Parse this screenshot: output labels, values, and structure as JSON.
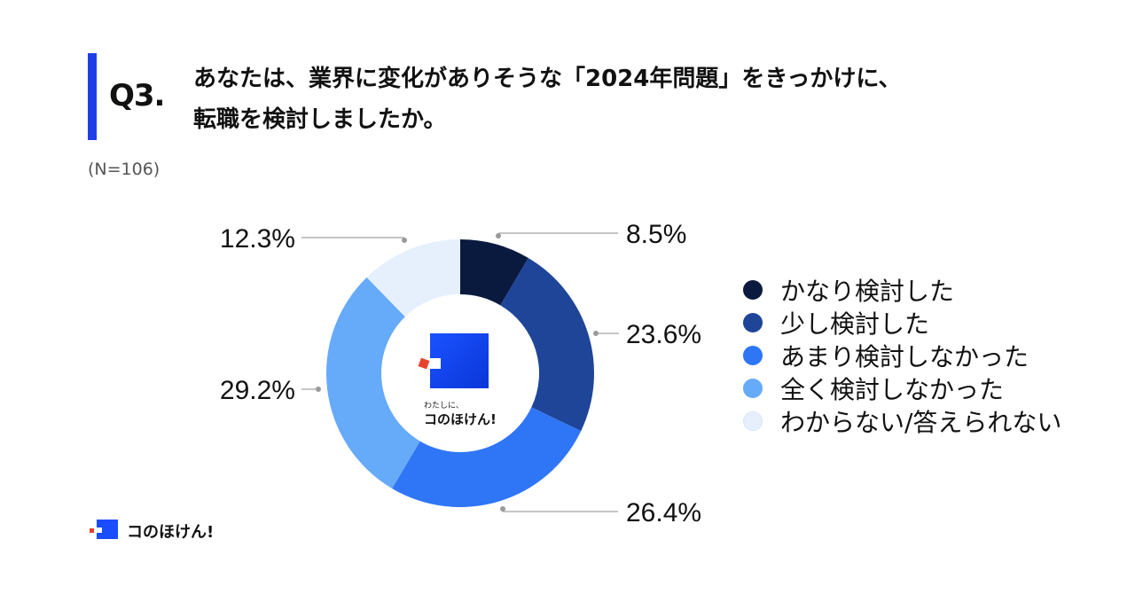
{
  "question": {
    "label": "Q3.",
    "line1": "あなたは、業界に変化がありそうな「2024年問題」をきっかけに、",
    "line2": "転職を検討しましたか。"
  },
  "sample_size": "(N=106)",
  "colors": {
    "accent": "#1f3fe6",
    "logo_blue": "#1a4dff",
    "logo_red": "#e8412c"
  },
  "center_logo": {
    "tagline": "わたしに、",
    "brand": "コのほけん!"
  },
  "footer": {
    "brand": "コのほけん!"
  },
  "chart_data": {
    "type": "pie",
    "donut": true,
    "labels": [
      "かなり検討した",
      "少し検討した",
      "あまり検討しなかった",
      "全く検討しなかった",
      "わからない/答えられない"
    ],
    "values": [
      8.5,
      23.6,
      26.4,
      29.2,
      12.3
    ],
    "value_labels": [
      "8.5%",
      "23.6%",
      "26.4%",
      "29.2%",
      "12.3%"
    ],
    "colors": [
      "#0a1a3f",
      "#1e4598",
      "#2f76f6",
      "#66aafa",
      "#e6f0fd"
    ],
    "legend_position": "right"
  }
}
